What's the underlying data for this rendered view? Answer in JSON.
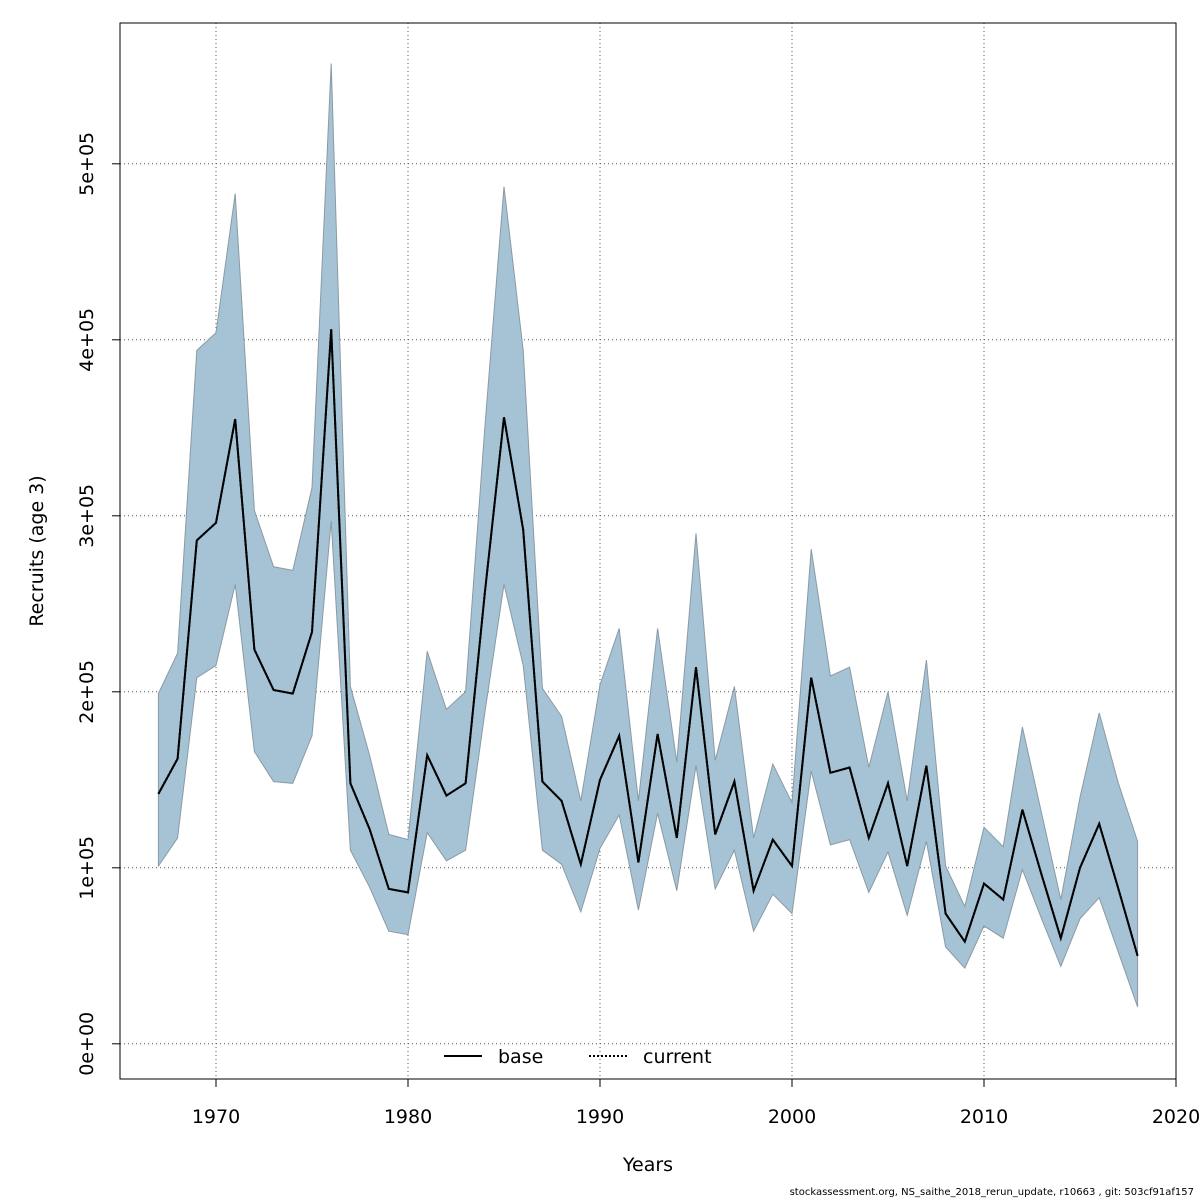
{
  "chart_data": {
    "type": "area",
    "xlabel": "Years",
    "ylabel": "Recruits (age 3)",
    "xlim": [
      1965,
      2020
    ],
    "ylim": [
      -20000,
      580000
    ],
    "grid": true,
    "x_ticks": [
      1970,
      1980,
      1990,
      2000,
      2010,
      2020
    ],
    "x_tick_labels": [
      "1970",
      "1980",
      "1990",
      "2000",
      "2010",
      "2020"
    ],
    "y_ticks": [
      0,
      100000,
      200000,
      300000,
      400000,
      500000
    ],
    "y_tick_labels": [
      "0e+00",
      "1e+05",
      "2e+05",
      "3e+05",
      "4e+05",
      "5e+05"
    ],
    "legend_position": "bottom",
    "legend": [
      {
        "label": "base",
        "style": "solid",
        "color": "#000000"
      },
      {
        "label": "current",
        "style": "dotted",
        "color": "#000000"
      }
    ],
    "band_color": "#a5c3d4",
    "band_edge_color": "#8a9aa4",
    "x": [
      1967,
      1968,
      1969,
      1970,
      1971,
      1972,
      1973,
      1974,
      1975,
      1976,
      1977,
      1978,
      1979,
      1980,
      1981,
      1982,
      1983,
      1984,
      1985,
      1986,
      1987,
      1988,
      1989,
      1990,
      1991,
      1992,
      1993,
      1994,
      1995,
      1996,
      1997,
      1998,
      1999,
      2000,
      2001,
      2002,
      2003,
      2004,
      2005,
      2006,
      2007,
      2008,
      2009,
      2010,
      2011,
      2012,
      2013,
      2014,
      2015,
      2016,
      2017,
      2018
    ],
    "series": [
      {
        "name": "base",
        "values": [
          142000,
          162000,
          286000,
          296000,
          355000,
          224000,
          201000,
          199000,
          234000,
          406000,
          148000,
          122000,
          88000,
          86000,
          164000,
          141000,
          148000,
          256000,
          356000,
          292000,
          149000,
          138000,
          102000,
          150000,
          175000,
          103000,
          176000,
          117000,
          214000,
          119000,
          149000,
          87000,
          116000,
          101000,
          208000,
          154000,
          157000,
          117000,
          148000,
          101000,
          158000,
          74000,
          58000,
          91000,
          82000,
          133000,
          96000,
          60000,
          100000,
          125000,
          88000,
          50000
        ]
      },
      {
        "name": "current",
        "values": [
          142000,
          162000,
          286000,
          296000,
          355000,
          224000,
          201000,
          199000,
          234000,
          406000,
          148000,
          122000,
          88000,
          86000,
          164000,
          141000,
          148000,
          256000,
          356000,
          292000,
          149000,
          138000,
          102000,
          150000,
          175000,
          103000,
          176000,
          117000,
          214000,
          119000,
          149000,
          87000,
          116000,
          101000,
          208000,
          154000,
          157000,
          117000,
          148000,
          101000,
          158000,
          74000,
          58000,
          91000,
          82000,
          133000,
          96000,
          60000,
          100000,
          125000,
          88000,
          50000
        ]
      },
      {
        "name": "upper",
        "values": [
          199000,
          222000,
          394000,
          404000,
          483000,
          303000,
          271000,
          269000,
          316000,
          557000,
          203000,
          164000,
          119000,
          116000,
          223000,
          190000,
          200000,
          350000,
          487000,
          394000,
          202000,
          186000,
          138000,
          204000,
          236000,
          138000,
          236000,
          160000,
          290000,
          161000,
          203000,
          117000,
          159000,
          137000,
          281000,
          209000,
          214000,
          157000,
          200000,
          138000,
          218000,
          101000,
          78000,
          123000,
          112000,
          180000,
          131000,
          82000,
          140000,
          188000,
          148000,
          115000
        ]
      },
      {
        "name": "lower",
        "values": [
          101000,
          117000,
          208000,
          215000,
          261000,
          166000,
          149000,
          148000,
          175000,
          297000,
          110000,
          89000,
          64000,
          62000,
          120000,
          104000,
          110000,
          188000,
          261000,
          215000,
          110000,
          102000,
          75000,
          111000,
          130000,
          76000,
          131000,
          87000,
          158000,
          88000,
          110000,
          64000,
          85000,
          74000,
          155000,
          113000,
          116000,
          86000,
          109000,
          73000,
          115000,
          55000,
          43000,
          67000,
          60000,
          99000,
          71000,
          44000,
          71000,
          83000,
          52000,
          21000
        ]
      }
    ]
  },
  "footer_text": "stockassessment.org, NS_saithe_2018_rerun_update, r10663 , git: 503cf91af157"
}
